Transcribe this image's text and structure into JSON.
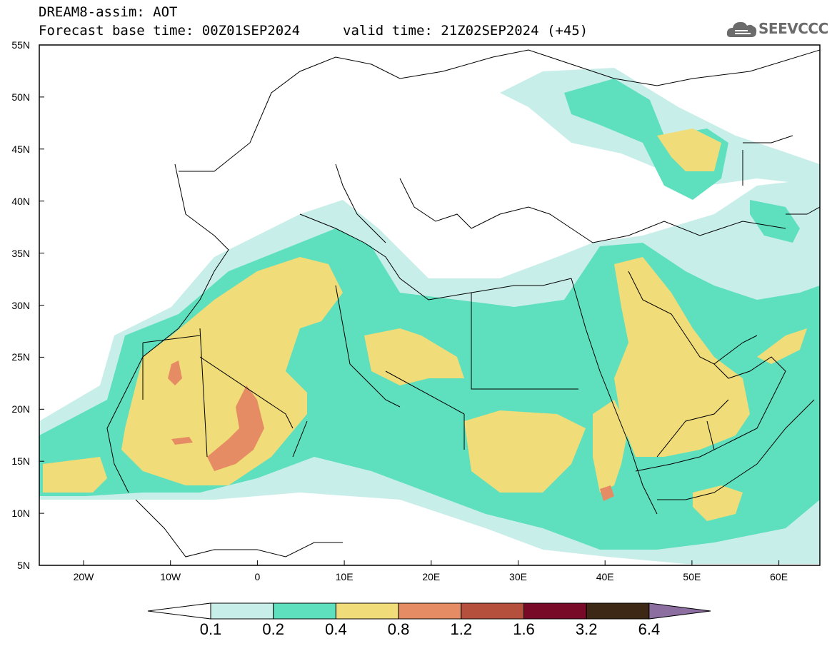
{
  "header": {
    "title": "DREAM8-assim: AOT",
    "base_time": "Forecast base time: 00Z01SEP2024",
    "valid_time": "valid time: 21Z02SEP2024 (+45)",
    "logo_text": "SEEVCCC"
  },
  "axes": {
    "lat_labels": [
      "55N",
      "50N",
      "45N",
      "40N",
      "35N",
      "30N",
      "25N",
      "20N",
      "15N",
      "10N",
      "5N"
    ],
    "lon_labels": [
      "20W",
      "10W",
      "0",
      "10E",
      "20E",
      "30E",
      "40E",
      "50E",
      "60E"
    ]
  },
  "colorbar": {
    "levels": [
      "0.1",
      "0.2",
      "0.4",
      "0.8",
      "1.2",
      "1.6",
      "3.2",
      "6.4"
    ],
    "colors": [
      "#c8eeea",
      "#5ee0be",
      "#f0dc78",
      "#e68c64",
      "#b4503c",
      "#780a28",
      "#3c2814",
      "#8c6ea0"
    ]
  },
  "colors": {
    "c1": "#c8eeea",
    "c2": "#5ee0be",
    "c3": "#f0dc78",
    "c4": "#e68c64"
  }
}
